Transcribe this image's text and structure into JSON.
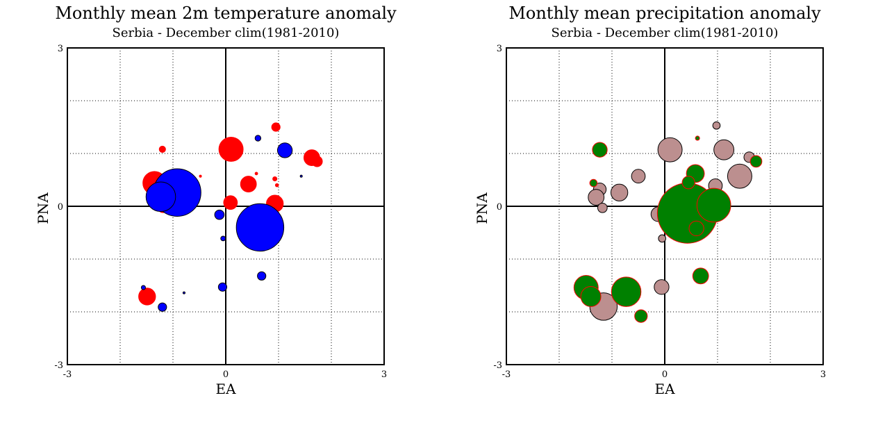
{
  "chart_data": [
    {
      "type": "scatter",
      "title": "Monthly mean 2m temperature anomaly",
      "subtitle": "Serbia - December  clim(1981-2010)",
      "xlabel": "EA",
      "ylabel": "PNA",
      "xlim": [
        -3,
        3
      ],
      "ylim": [
        -3,
        3
      ],
      "x_tick_labels": [
        "-3",
        "0",
        "3"
      ],
      "y_tick_labels": [
        "3",
        "0",
        "-3"
      ],
      "grid": true,
      "grid_style": "dotted",
      "grid_step": 1,
      "marker_size_encodes": "anomaly magnitude",
      "series": [
        {
          "color": "#ff0000",
          "edge": "#ff0000",
          "points": [
            {
              "x": 0.1,
              "y": 1.08,
              "size": 0.23
            },
            {
              "x": 0.95,
              "y": 1.5,
              "size": 0.08
            },
            {
              "x": 1.63,
              "y": 0.92,
              "size": 0.15
            },
            {
              "x": 1.73,
              "y": 0.85,
              "size": 0.1
            },
            {
              "x": -1.35,
              "y": 0.44,
              "size": 0.22
            },
            {
              "x": -1.2,
              "y": 1.08,
              "size": 0.06
            },
            {
              "x": 0.43,
              "y": 0.42,
              "size": 0.15
            },
            {
              "x": 0.93,
              "y": 0.05,
              "size": 0.16
            },
            {
              "x": 0.09,
              "y": 0.07,
              "size": 0.13
            },
            {
              "x": -1.19,
              "y": -0.03,
              "size": 0.09
            },
            {
              "x": 0.93,
              "y": 0.52,
              "size": 0.04
            },
            {
              "x": 0.97,
              "y": 0.4,
              "size": 0.03
            },
            {
              "x": 0.58,
              "y": 0.62,
              "size": 0.025
            },
            {
              "x": -0.48,
              "y": 0.57,
              "size": 0.02
            },
            {
              "x": 0.59,
              "y": -0.42,
              "size": 0.025
            },
            {
              "x": -1.49,
              "y": -1.71,
              "size": 0.16
            }
          ]
        },
        {
          "color": "#0000ff",
          "edge": "#000000",
          "points": [
            {
              "x": -0.92,
              "y": 0.26,
              "size": 0.45
            },
            {
              "x": -1.23,
              "y": 0.18,
              "size": 0.28
            },
            {
              "x": 0.65,
              "y": -0.4,
              "size": 0.45
            },
            {
              "x": 1.12,
              "y": 1.06,
              "size": 0.14
            },
            {
              "x": -0.12,
              "y": -0.16,
              "size": 0.09
            },
            {
              "x": 0.61,
              "y": 1.29,
              "size": 0.055
            },
            {
              "x": -0.05,
              "y": -0.61,
              "size": 0.045
            },
            {
              "x": -0.06,
              "y": -1.53,
              "size": 0.08
            },
            {
              "x": 0.68,
              "y": -1.32,
              "size": 0.08
            },
            {
              "x": -1.2,
              "y": -1.91,
              "size": 0.08
            },
            {
              "x": -1.56,
              "y": -1.54,
              "size": 0.04
            },
            {
              "x": -0.79,
              "y": -1.64,
              "size": 0.02
            },
            {
              "x": 1.43,
              "y": 0.57,
              "size": 0.015
            }
          ]
        }
      ]
    },
    {
      "type": "scatter",
      "title": "Monthly mean precipitation anomaly",
      "subtitle": "Serbia - December  clim(1981-2010)",
      "xlabel": "EA",
      "ylabel": "PNA",
      "xlim": [
        -3,
        3
      ],
      "ylim": [
        -3,
        3
      ],
      "x_tick_labels": [
        "-3",
        "0",
        "3"
      ],
      "y_tick_labels": [
        "3",
        "0",
        "-3"
      ],
      "grid": true,
      "grid_style": "dotted",
      "grid_step": 1,
      "marker_size_encodes": "anomaly magnitude",
      "series": [
        {
          "color": "#bc8f8f",
          "edge": "#000000",
          "points": [
            {
              "x": 0.1,
              "y": 1.07,
              "size": 0.23
            },
            {
              "x": 1.12,
              "y": 1.07,
              "size": 0.19
            },
            {
              "x": 1.42,
              "y": 0.57,
              "size": 0.23
            },
            {
              "x": -1.23,
              "y": 0.32,
              "size": 0.12
            },
            {
              "x": -0.86,
              "y": 0.26,
              "size": 0.16
            },
            {
              "x": -0.5,
              "y": 0.57,
              "size": 0.13
            },
            {
              "x": -1.3,
              "y": 0.17,
              "size": 0.15
            },
            {
              "x": -1.18,
              "y": -0.03,
              "size": 0.09
            },
            {
              "x": -0.12,
              "y": -0.15,
              "size": 0.14
            },
            {
              "x": 0.96,
              "y": 0.39,
              "size": 0.13
            },
            {
              "x": 1.6,
              "y": 0.93,
              "size": 0.1
            },
            {
              "x": 0.98,
              "y": 1.53,
              "size": 0.07
            },
            {
              "x": 0.6,
              "y": -0.3,
              "size": 0.2
            },
            {
              "x": -0.05,
              "y": -0.61,
              "size": 0.07
            },
            {
              "x": -0.06,
              "y": -1.53,
              "size": 0.14
            },
            {
              "x": -1.16,
              "y": -1.9,
              "size": 0.26
            }
          ]
        },
        {
          "color": "#008000",
          "edge": "#ff0000",
          "points": [
            {
              "x": 0.43,
              "y": -0.13,
              "size": 0.57
            },
            {
              "x": 0.93,
              "y": 0.02,
              "size": 0.32
            },
            {
              "x": 0.58,
              "y": 0.62,
              "size": 0.17
            },
            {
              "x": 0.6,
              "y": -0.42,
              "size": 0.14
            },
            {
              "x": 0.45,
              "y": 0.45,
              "size": 0.12
            },
            {
              "x": -1.23,
              "y": 1.07,
              "size": 0.14
            },
            {
              "x": -1.35,
              "y": 0.44,
              "size": 0.07
            },
            {
              "x": 1.73,
              "y": 0.85,
              "size": 0.11
            },
            {
              "x": -0.73,
              "y": -1.62,
              "size": 0.28
            },
            {
              "x": -1.49,
              "y": -1.54,
              "size": 0.23
            },
            {
              "x": -1.4,
              "y": -1.71,
              "size": 0.19
            },
            {
              "x": 0.68,
              "y": -1.32,
              "size": 0.15
            },
            {
              "x": -0.45,
              "y": -2.08,
              "size": 0.12
            },
            {
              "x": 0.62,
              "y": 1.29,
              "size": 0.04
            }
          ]
        }
      ]
    }
  ]
}
